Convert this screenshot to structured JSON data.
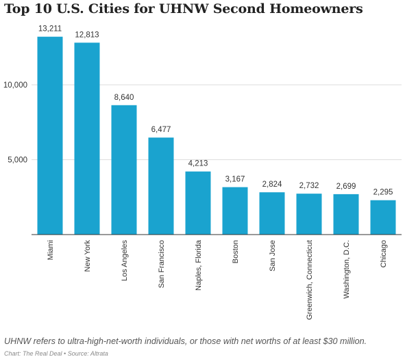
{
  "title": "Top 10 U.S. Cities for UHNW Second Homeowners",
  "note": "UHNW refers to ultra-high-net-worth individuals, or those with net worths of at least $30 million.",
  "source": "Chart: The Real Deal • Source: Altrata",
  "colors": {
    "bar": "#1aa3cf",
    "grid": "#dddddd",
    "axis": "#333333",
    "text": "#333333"
  },
  "chart_data": {
    "type": "bar",
    "title": "Top 10 U.S. Cities for UHNW Second Homeowners",
    "xlabel": "",
    "ylabel": "",
    "ylim": [
      0,
      14000
    ],
    "yticks": [
      5000,
      10000
    ],
    "ytick_labels": [
      "5,000",
      "10,000"
    ],
    "grid": true,
    "categories": [
      "Miami",
      "New York",
      "Los Angeles",
      "San Francisco",
      "Naples, Florida",
      "Boston",
      "San Jose",
      "Greenwich, Connecticut",
      "Washington, D.C.",
      "Chicago"
    ],
    "values": [
      13211,
      12813,
      8640,
      6477,
      4213,
      3167,
      2824,
      2732,
      2699,
      2295
    ],
    "value_labels": [
      "13,211",
      "12,813",
      "8,640",
      "6,477",
      "4,213",
      "3,167",
      "2,824",
      "2,732",
      "2,699",
      "2,295"
    ]
  }
}
